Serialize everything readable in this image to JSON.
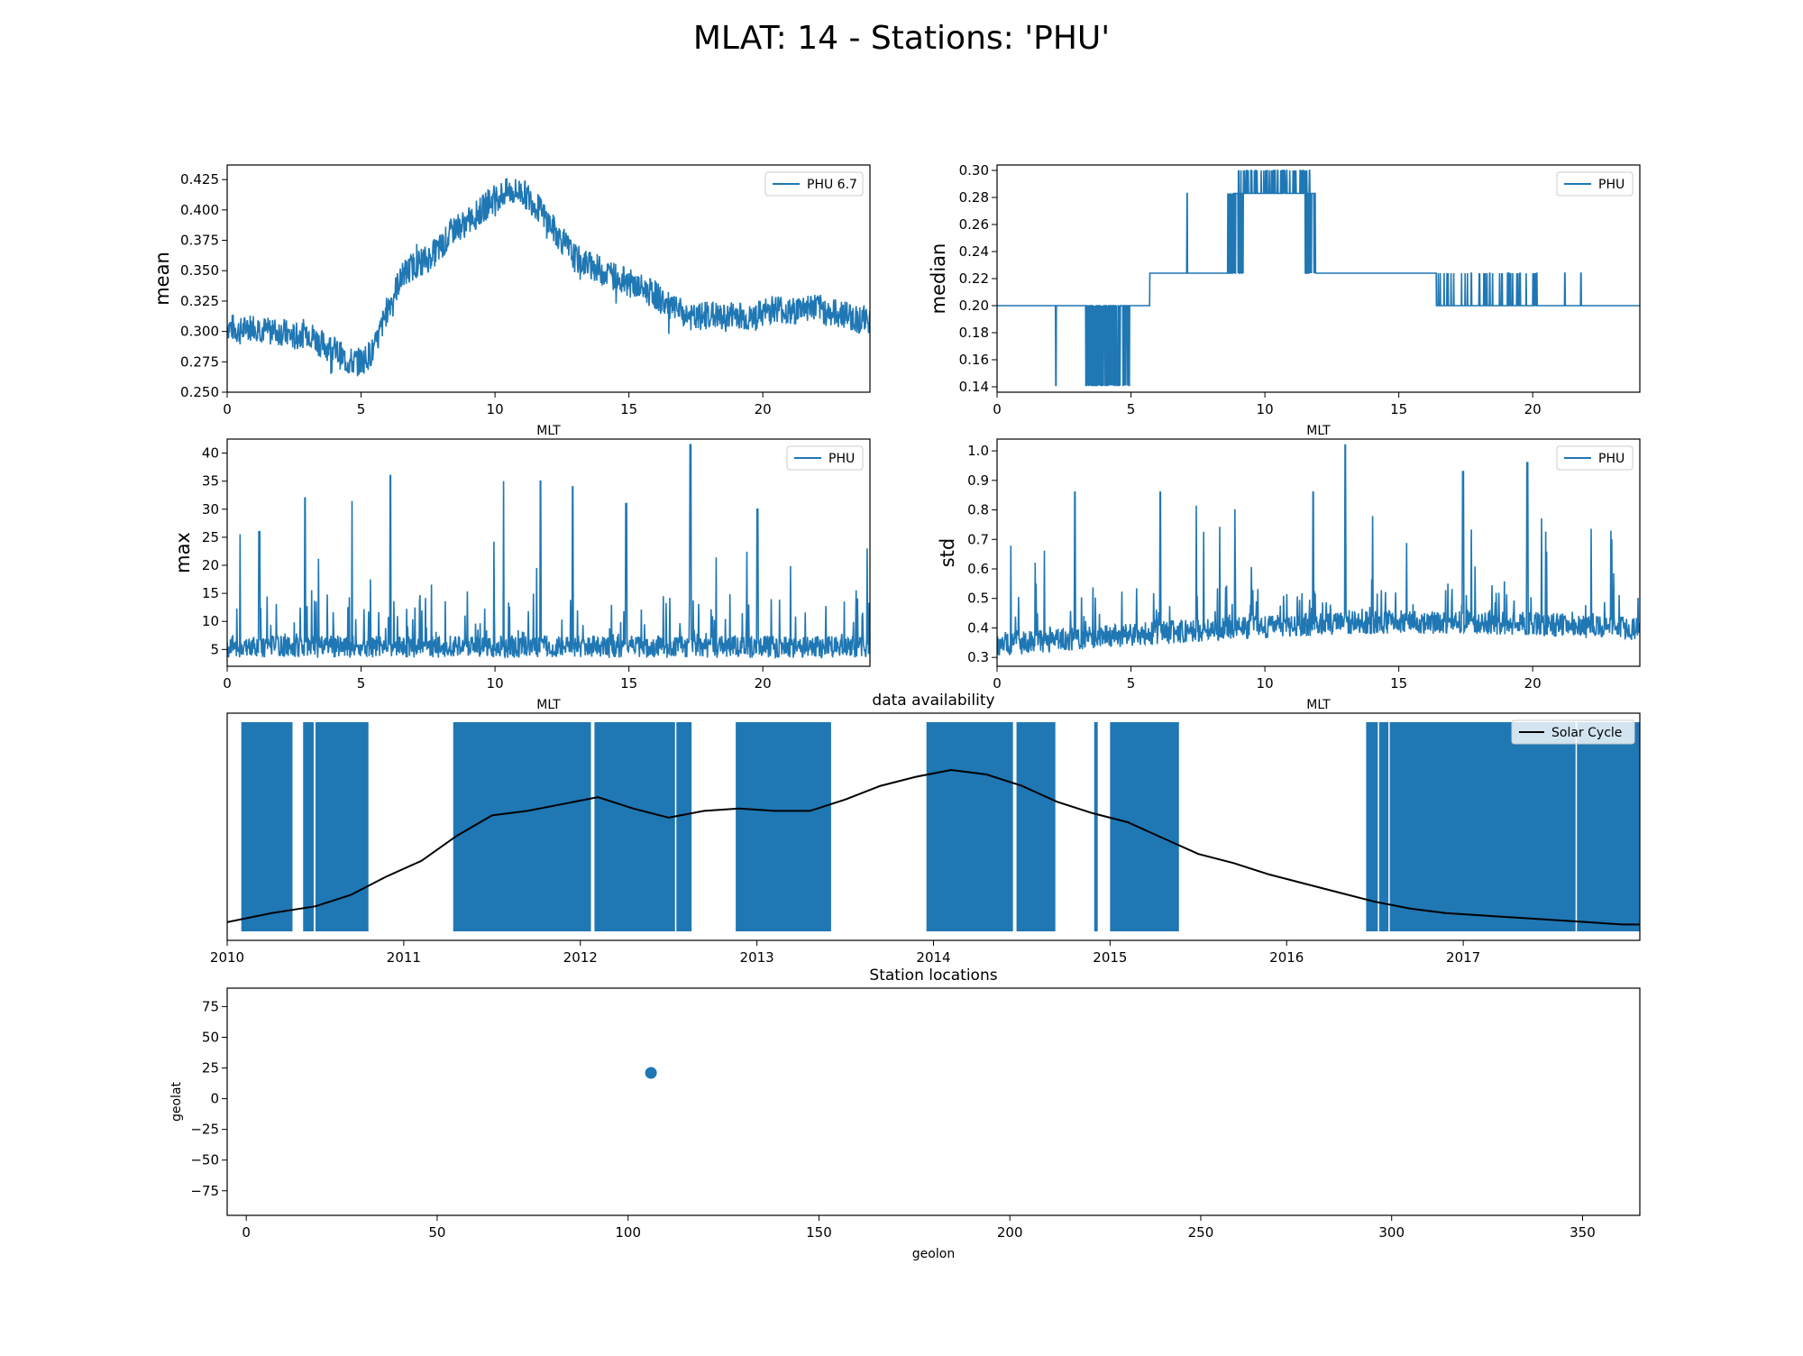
{
  "figure": {
    "title": "MLAT: 14 - Stations: 'PHU'"
  },
  "colors": {
    "series": "#1f77b4",
    "solar": "#000000"
  },
  "chart_data": [
    {
      "id": "mean",
      "type": "line",
      "xlabel": "MLT",
      "ylabel": "mean",
      "xlim": [
        0,
        24
      ],
      "ylim": [
        0.25,
        0.437
      ],
      "xticks": [
        0,
        5,
        10,
        15,
        20
      ],
      "yticks": [
        0.25,
        0.275,
        0.3,
        0.325,
        0.35,
        0.375,
        0.4,
        0.425
      ],
      "ytick_labels": [
        "0.250",
        "0.275",
        "0.300",
        "0.325",
        "0.350",
        "0.375",
        "0.400",
        "0.425"
      ],
      "legend": "top-right",
      "series": [
        {
          "name": "PHU 6.7",
          "x": [
            0,
            0.5,
            1,
            1.5,
            2,
            2.5,
            3,
            3.5,
            4,
            4.5,
            5,
            5.5,
            6,
            6.5,
            7,
            7.5,
            8,
            8.5,
            9,
            9.5,
            10,
            10.5,
            11,
            11.5,
            12,
            12.5,
            13,
            13.5,
            14,
            14.5,
            15,
            15.5,
            16,
            16.5,
            17,
            17.5,
            18,
            18.5,
            19,
            19.5,
            20,
            20.5,
            21,
            21.5,
            22,
            22.5,
            23,
            23.5,
            24
          ],
          "y": [
            0.305,
            0.3,
            0.305,
            0.3,
            0.3,
            0.295,
            0.3,
            0.29,
            0.285,
            0.275,
            0.275,
            0.285,
            0.32,
            0.345,
            0.355,
            0.36,
            0.37,
            0.385,
            0.39,
            0.4,
            0.41,
            0.415,
            0.415,
            0.405,
            0.39,
            0.375,
            0.36,
            0.355,
            0.35,
            0.345,
            0.34,
            0.335,
            0.33,
            0.32,
            0.315,
            0.31,
            0.315,
            0.31,
            0.315,
            0.31,
            0.315,
            0.32,
            0.315,
            0.32,
            0.32,
            0.315,
            0.315,
            0.31,
            0.31
          ]
        }
      ]
    },
    {
      "id": "median",
      "type": "line",
      "xlabel": "MLT",
      "ylabel": "median",
      "xlim": [
        0,
        24
      ],
      "ylim": [
        0.136,
        0.304
      ],
      "xticks": [
        0,
        5,
        10,
        15,
        20
      ],
      "yticks": [
        0.14,
        0.16,
        0.18,
        0.2,
        0.22,
        0.24,
        0.26,
        0.28,
        0.3
      ],
      "ytick_labels": [
        "0.14",
        "0.16",
        "0.18",
        "0.20",
        "0.22",
        "0.24",
        "0.26",
        "0.28",
        "0.30"
      ],
      "legend": "top-right",
      "series": [
        {
          "name": "PHU",
          "x": [
            0,
            5.7,
            5.7,
            8.6,
            8.6,
            11.9,
            11.9,
            24
          ],
          "y": [
            0.2,
            0.2,
            0.224,
            0.224,
            0.283,
            0.283,
            0.224,
            0.2
          ]
        }
      ]
    },
    {
      "id": "max",
      "type": "line",
      "xlabel": "MLT",
      "ylabel": "max",
      "xlim": [
        0,
        24
      ],
      "ylim": [
        2,
        42.5
      ],
      "xticks": [
        0,
        5,
        10,
        15,
        20
      ],
      "yticks": [
        5,
        10,
        15,
        20,
        25,
        30,
        35,
        40
      ],
      "ytick_labels": [
        "5",
        "10",
        "15",
        "20",
        "25",
        "30",
        "35",
        "40"
      ],
      "legend": "top-right",
      "series": [
        {
          "name": "PHU",
          "x": [
            0,
            1.2,
            2.9,
            6.1,
            11.7,
            12.9,
            14.9,
            17.3,
            19.8,
            24
          ],
          "y": [
            6,
            26,
            32,
            36,
            35,
            34,
            31,
            41.5,
            30,
            6
          ]
        }
      ]
    },
    {
      "id": "std",
      "type": "line",
      "xlabel": "MLT",
      "ylabel": "std",
      "xlim": [
        0,
        24
      ],
      "ylim": [
        0.27,
        1.04
      ],
      "xticks": [
        0,
        5,
        10,
        15,
        20
      ],
      "yticks": [
        0.3,
        0.4,
        0.5,
        0.6,
        0.7,
        0.8,
        0.9,
        1.0
      ],
      "ytick_labels": [
        "0.3",
        "0.4",
        "0.5",
        "0.6",
        "0.7",
        "0.8",
        "0.9",
        "1.0"
      ],
      "legend": "top-right",
      "series": [
        {
          "name": "PHU",
          "x": [
            0,
            2.9,
            6.1,
            11.8,
            13,
            17.4,
            19.8,
            24
          ],
          "y": [
            0.38,
            0.86,
            0.86,
            0.86,
            1.02,
            0.93,
            0.96,
            0.4
          ]
        }
      ]
    },
    {
      "id": "availability",
      "type": "bar",
      "title": "data availability",
      "xlim": [
        2010,
        2018
      ],
      "xticks": [
        2010,
        2011,
        2012,
        2013,
        2014,
        2015,
        2016,
        2017
      ],
      "legend": "top-right",
      "coverage_intervals": [
        [
          2010.08,
          2010.37
        ],
        [
          2010.43,
          2010.49
        ],
        [
          2010.5,
          2010.8
        ],
        [
          2011.28,
          2012.06
        ],
        [
          2012.08,
          2012.63
        ],
        [
          2012.88,
          2013.42
        ],
        [
          2013.96,
          2014.45
        ],
        [
          2014.47,
          2014.69
        ],
        [
          2014.91,
          2014.93
        ],
        [
          2015.0,
          2015.39
        ],
        [
          2016.45,
          2018.0
        ]
      ],
      "series": [
        {
          "name": "Solar Cycle",
          "x": [
            2010,
            2010.25,
            2010.5,
            2010.7,
            2010.9,
            2011.1,
            2011.3,
            2011.5,
            2011.7,
            2011.9,
            2012.1,
            2012.3,
            2012.5,
            2012.7,
            2012.9,
            2013.1,
            2013.3,
            2013.5,
            2013.7,
            2013.9,
            2014.1,
            2014.3,
            2014.5,
            2014.7,
            2014.9,
            2015.1,
            2015.3,
            2015.5,
            2015.7,
            2015.9,
            2016.1,
            2016.3,
            2016.5,
            2016.7,
            2016.9,
            2017.1,
            2017.3,
            2017.5,
            2017.7,
            2017.9,
            2018.0
          ],
          "y": [
            0.08,
            0.12,
            0.15,
            0.2,
            0.28,
            0.35,
            0.46,
            0.55,
            0.57,
            0.6,
            0.63,
            0.58,
            0.54,
            0.57,
            0.58,
            0.57,
            0.57,
            0.62,
            0.68,
            0.72,
            0.75,
            0.73,
            0.68,
            0.61,
            0.56,
            0.52,
            0.45,
            0.38,
            0.34,
            0.29,
            0.25,
            0.21,
            0.17,
            0.14,
            0.12,
            0.11,
            0.1,
            0.09,
            0.08,
            0.07,
            0.07
          ]
        }
      ]
    },
    {
      "id": "locations",
      "type": "scatter",
      "title": "Station locations",
      "xlabel": "geolon",
      "ylabel": "geolat",
      "xlim": [
        -5,
        365
      ],
      "ylim": [
        -95,
        90
      ],
      "xticks": [
        0,
        50,
        100,
        150,
        200,
        250,
        300,
        350
      ],
      "yticks": [
        -75,
        -50,
        -25,
        0,
        25,
        50,
        75
      ],
      "ytick_labels": [
        "−75",
        "−50",
        "−25",
        "0",
        "25",
        "50",
        "75"
      ],
      "series": [
        {
          "x": [
            106
          ],
          "y": [
            21
          ]
        }
      ]
    }
  ]
}
